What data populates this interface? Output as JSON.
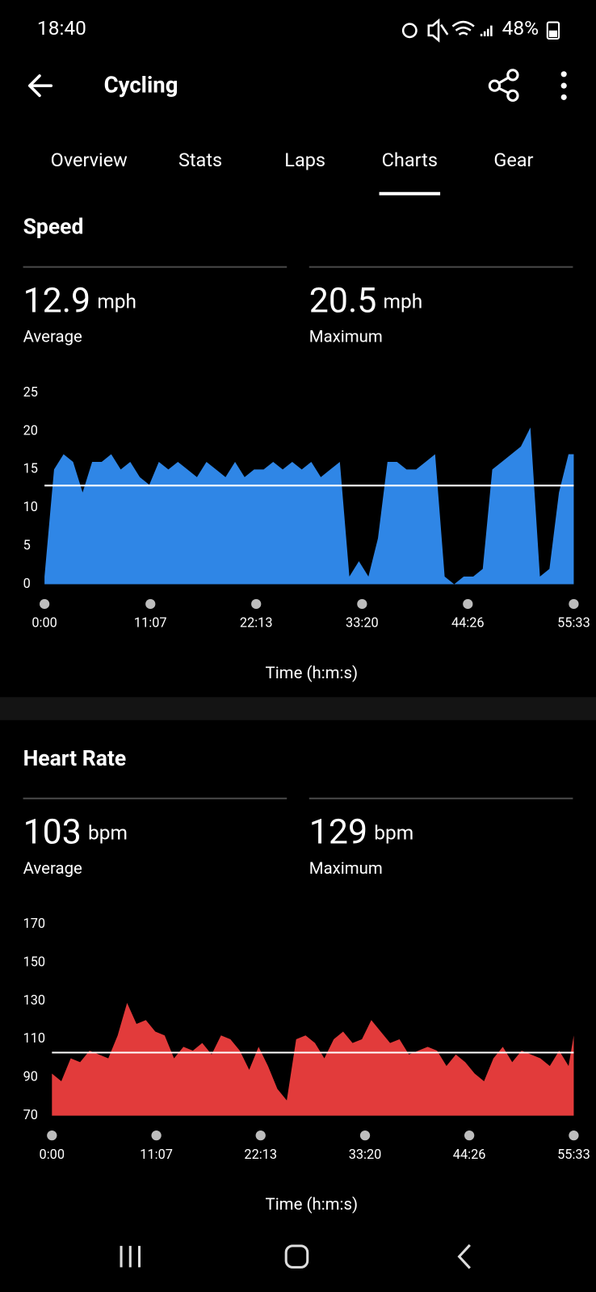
{
  "status_bar": {
    "time": "18:40",
    "battery": "48%"
  },
  "header": {
    "title": "Cycling"
  },
  "tabs": {
    "items": [
      "Overview",
      "Stats",
      "Laps",
      "Charts",
      "Gear"
    ],
    "active": 3
  },
  "chart_data": [
    {
      "type": "area",
      "title": "Speed",
      "unit": "mph",
      "average": 12.9,
      "average_label": "Average",
      "maximum": 20.5,
      "maximum_label": "Maximum",
      "color": "#2f86e6",
      "average_line_color": "#ffffff",
      "x": [
        0,
        60,
        120,
        180,
        240,
        300,
        360,
        420,
        480,
        540,
        600,
        660,
        720,
        780,
        840,
        900,
        960,
        1020,
        1080,
        1140,
        1200,
        1260,
        1320,
        1380,
        1440,
        1500,
        1560,
        1620,
        1680,
        1740,
        1800,
        1860,
        1920,
        1980,
        2040,
        2100,
        2160,
        2220,
        2280,
        2340,
        2400,
        2460,
        2520,
        2580,
        2640,
        2700,
        2760,
        2820,
        2880,
        2940,
        3000,
        3060,
        3120,
        3180,
        3240,
        3300,
        3333
      ],
      "values": [
        1,
        15,
        17,
        16,
        12,
        16,
        16,
        17,
        15,
        16,
        14,
        13,
        16,
        15,
        16,
        15,
        14,
        16,
        15,
        14,
        16,
        14,
        15,
        15,
        16,
        15,
        16,
        15,
        16,
        14,
        15,
        16,
        1,
        3,
        1,
        6,
        16,
        16,
        15,
        15,
        16,
        17,
        1,
        0,
        1,
        1,
        2,
        15,
        16,
        17,
        18,
        20.5,
        1,
        2,
        12,
        17,
        17
      ],
      "xlim": [
        0,
        3333
      ],
      "xticks": [
        {
          "value": 0,
          "label": "0:00"
        },
        {
          "value": 667,
          "label": "11:07"
        },
        {
          "value": 1333,
          "label": "22:13"
        },
        {
          "value": 2000,
          "label": "33:20"
        },
        {
          "value": 2666,
          "label": "44:26"
        },
        {
          "value": 3333,
          "label": "55:33"
        }
      ],
      "ylim": [
        0,
        25
      ],
      "yticks": [
        0,
        5,
        10,
        15,
        20,
        25
      ],
      "grid": false,
      "xlabel": "Time (h:m:s)"
    },
    {
      "type": "area",
      "title": "Heart Rate",
      "unit": "bpm",
      "average": 103,
      "average_label": "Average",
      "maximum": 129,
      "maximum_label": "Maximum",
      "color": "#e23b3b",
      "average_line_color": "#ffffff",
      "x": [
        0,
        60,
        120,
        180,
        240,
        300,
        360,
        420,
        480,
        540,
        600,
        660,
        720,
        780,
        840,
        900,
        960,
        1020,
        1080,
        1140,
        1200,
        1260,
        1320,
        1380,
        1440,
        1500,
        1560,
        1620,
        1680,
        1740,
        1800,
        1860,
        1920,
        1980,
        2040,
        2100,
        2160,
        2220,
        2280,
        2340,
        2400,
        2460,
        2520,
        2580,
        2640,
        2700,
        2760,
        2820,
        2880,
        2940,
        3000,
        3060,
        3120,
        3180,
        3240,
        3300,
        3333
      ],
      "values": [
        92,
        88,
        100,
        98,
        104,
        102,
        100,
        112,
        129,
        118,
        120,
        114,
        112,
        100,
        106,
        104,
        108,
        102,
        112,
        110,
        104,
        94,
        106,
        96,
        84,
        78,
        110,
        112,
        108,
        100,
        110,
        114,
        108,
        110,
        120,
        114,
        108,
        110,
        102,
        104,
        106,
        104,
        96,
        102,
        98,
        92,
        88,
        100,
        106,
        98,
        104,
        102,
        100,
        96,
        104,
        96,
        112
      ],
      "xlim": [
        0,
        3333
      ],
      "xticks": [
        {
          "value": 0,
          "label": "0:00"
        },
        {
          "value": 667,
          "label": "11:07"
        },
        {
          "value": 1333,
          "label": "22:13"
        },
        {
          "value": 2000,
          "label": "33:20"
        },
        {
          "value": 2666,
          "label": "44:26"
        },
        {
          "value": 3333,
          "label": "55:33"
        }
      ],
      "ylim": [
        70,
        170
      ],
      "yticks": [
        70,
        90,
        110,
        130,
        150,
        170
      ],
      "grid": false,
      "xlabel": "Time (h:m:s)"
    }
  ]
}
